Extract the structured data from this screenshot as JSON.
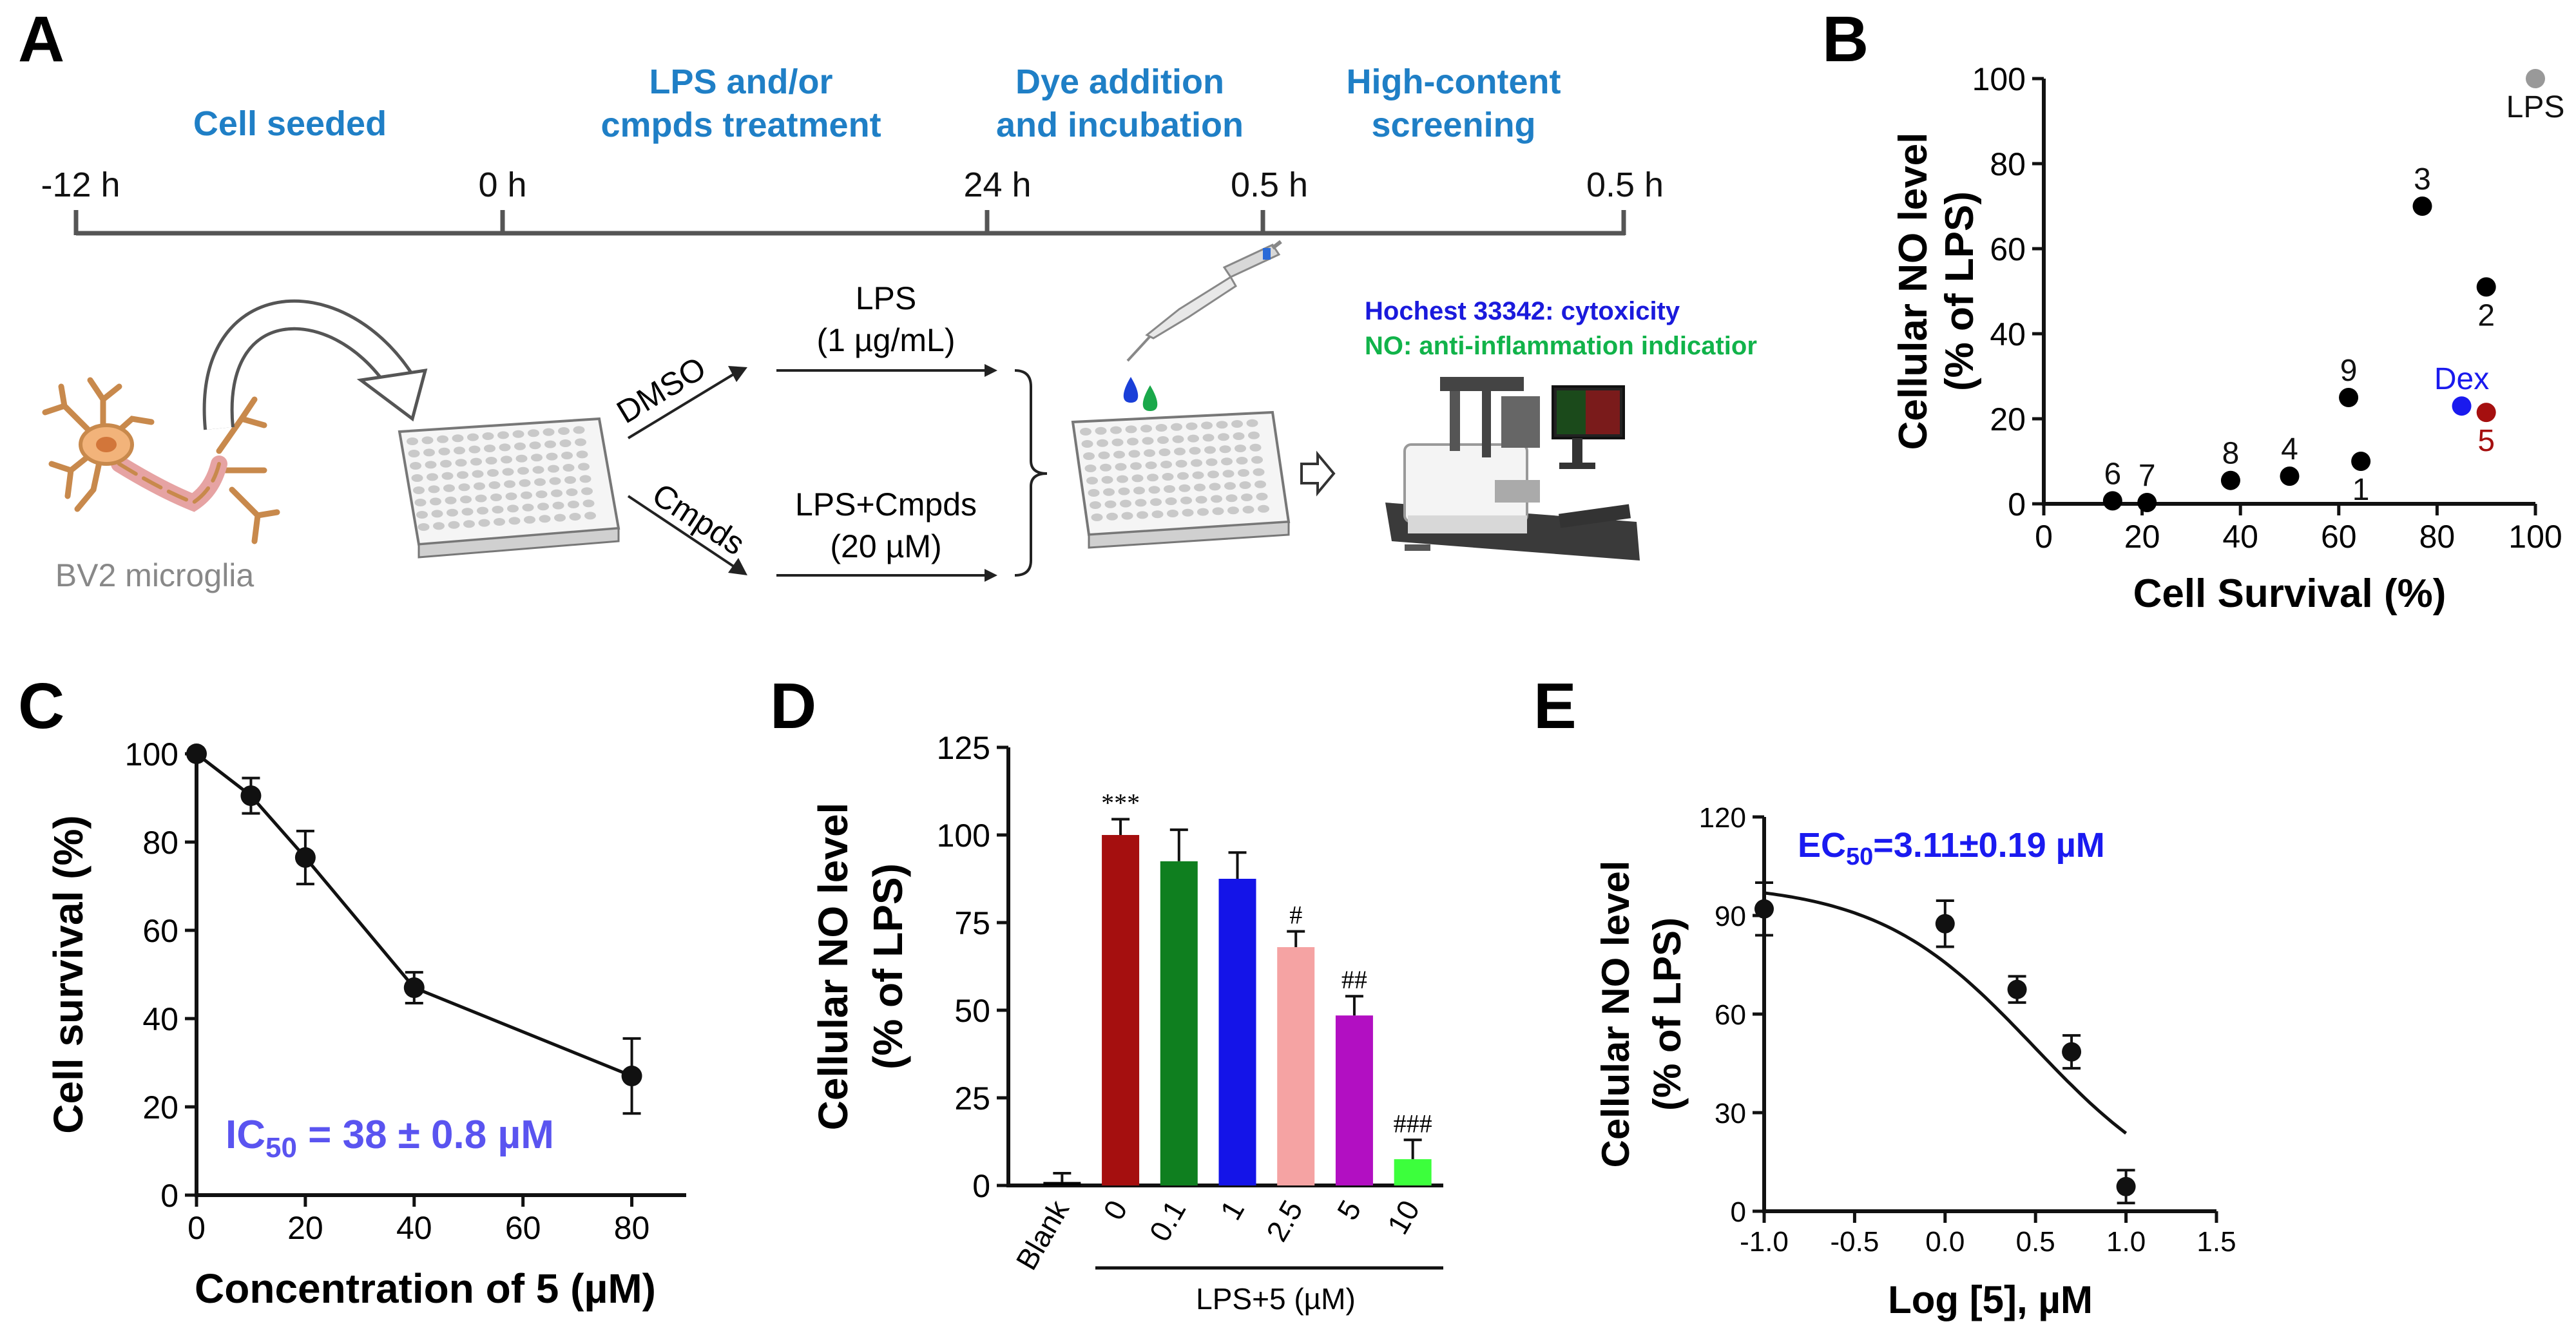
{
  "panels": {
    "A": {
      "letter": "A",
      "timeline": {
        "ticks": [
          "-12 h",
          "0 h",
          "24 h",
          "0.5 h",
          "0.5 h"
        ],
        "stages": [
          [
            "Cell seeded"
          ],
          [
            "LPS and/or",
            "cmpds treatment"
          ],
          [
            "Dye addition",
            "and incubation"
          ],
          [
            "High-content",
            "screening"
          ]
        ]
      },
      "cell_label": "BV2 microglia",
      "branches": [
        {
          "arrow_label": "DMSO",
          "line1": "LPS",
          "line2": "(1 µg/mL)"
        },
        {
          "arrow_label": "Cmpds",
          "line1": "LPS+Cmpds",
          "line2": "(20 µM)"
        }
      ],
      "legend": [
        {
          "text": "Hochest 33342: cytoxicity",
          "color": "#1a1adc"
        },
        {
          "text": "NO: anti-inflammation indicatior",
          "color": "#11b34a"
        }
      ],
      "colors": {
        "stage_text": "#1f7fc6",
        "drop_blue": "#1a3fd8",
        "drop_green": "#1aa84a"
      }
    },
    "B": {
      "letter": "B"
    },
    "C": {
      "letter": "C",
      "annotation": {
        "main": "IC",
        "sub": "50",
        "rest": " = 38 ± 0.8 µM",
        "color": "#5a54f0"
      }
    },
    "D": {
      "letter": "D",
      "group_label": "LPS+5 (µM)"
    },
    "E": {
      "letter": "E",
      "annotation": {
        "main": "EC",
        "sub": "50",
        "rest": "=3.11±0.19 µM",
        "color": "#1a1af0"
      }
    }
  },
  "chart_data": [
    {
      "panel": "B",
      "type": "scatter",
      "xlabel": "Cell Survival (%)",
      "ylabel": [
        "Cellular NO level",
        "(% of LPS)"
      ],
      "xlim": [
        0,
        100
      ],
      "ylim": [
        0,
        100
      ],
      "xticks": [
        0,
        20,
        40,
        60,
        80,
        100
      ],
      "yticks": [
        0,
        20,
        40,
        60,
        80,
        100
      ],
      "points": [
        {
          "label": "LPS",
          "x": 100,
          "y": 100,
          "color": "#999999",
          "label_pos": "below"
        },
        {
          "label": "3",
          "x": 77,
          "y": 70,
          "color": "#000000",
          "label_pos": "above"
        },
        {
          "label": "2",
          "x": 90,
          "y": 51,
          "color": "#000000",
          "label_pos": "below"
        },
        {
          "label": "Dex",
          "x": 85,
          "y": 23,
          "color": "#1a1aee",
          "label_pos": "above"
        },
        {
          "label": "5",
          "x": 90,
          "y": 21.5,
          "color": "#a50f0f",
          "label_pos": "below"
        },
        {
          "label": "9",
          "x": 62,
          "y": 25,
          "color": "#000000",
          "label_pos": "above"
        },
        {
          "label": "1",
          "x": 64.5,
          "y": 10,
          "color": "#000000",
          "label_pos": "below"
        },
        {
          "label": "4",
          "x": 50,
          "y": 6.5,
          "color": "#000000",
          "label_pos": "above"
        },
        {
          "label": "8",
          "x": 38,
          "y": 5.5,
          "color": "#000000",
          "label_pos": "above"
        },
        {
          "label": "6",
          "x": 14,
          "y": 0.7,
          "color": "#000000",
          "label_pos": "above"
        },
        {
          "label": "7",
          "x": 21,
          "y": 0.3,
          "color": "#000000",
          "label_pos": "above"
        }
      ]
    },
    {
      "panel": "C",
      "type": "line",
      "xlabel": "Concentration of 5 (µM)",
      "ylabel": "Cell survival (%)",
      "xlim": [
        0,
        90
      ],
      "ylim": [
        0,
        100
      ],
      "xticks": [
        0,
        20,
        40,
        60,
        80
      ],
      "yticks": [
        0,
        20,
        40,
        60,
        80,
        100
      ],
      "x": [
        0,
        10,
        20,
        40,
        80
      ],
      "y": [
        100,
        90.5,
        76.5,
        47,
        27
      ],
      "err": [
        0.5,
        4,
        6,
        3.5,
        8.5
      ]
    },
    {
      "panel": "D",
      "type": "bar",
      "ylabel": [
        "Cellular NO level",
        "(% of LPS)"
      ],
      "ylim": [
        0,
        125
      ],
      "yticks": [
        0,
        25,
        50,
        75,
        100,
        125
      ],
      "categories": [
        "Blank",
        "0",
        "0.1",
        "1",
        "2.5",
        "5",
        "10"
      ],
      "values": [
        1,
        100,
        92.5,
        87.5,
        68,
        48.5,
        7.5
      ],
      "err": [
        2.5,
        4.5,
        9,
        7.5,
        4.5,
        5.5,
        5.5
      ],
      "colors": [
        "#000000",
        "#a50f0f",
        "#0f7f1f",
        "#1414e8",
        "#f5a3a3",
        "#b20fc2",
        "#3cff3c"
      ],
      "annotations": [
        "",
        "***",
        "",
        "",
        "#",
        "##",
        "###"
      ]
    },
    {
      "panel": "E",
      "type": "scatter",
      "xlabel": "Log [5], µM",
      "ylabel": [
        "Cellular NO level",
        "(% of LPS)"
      ],
      "xlim": [
        -1.0,
        1.5
      ],
      "ylim": [
        0,
        120
      ],
      "xticks": [
        -1.0,
        -0.5,
        0.0,
        0.5,
        1.0,
        1.5
      ],
      "xticklabels": [
        "-1.0",
        "-0.5",
        "0.0",
        "0.5",
        "1.0",
        "1.5"
      ],
      "yticks": [
        0,
        30,
        60,
        90,
        120
      ],
      "x": [
        -1.0,
        0.0,
        0.398,
        0.699,
        1.0
      ],
      "y": [
        92,
        87.5,
        67.5,
        48.5,
        7.5
      ],
      "err": [
        8,
        7,
        4,
        5,
        5
      ],
      "fit": {
        "top": 100,
        "bottom": 0,
        "log_ec50": 0.493,
        "hill": -1,
        "x_range": [
          -1.0,
          1.0
        ]
      }
    }
  ]
}
